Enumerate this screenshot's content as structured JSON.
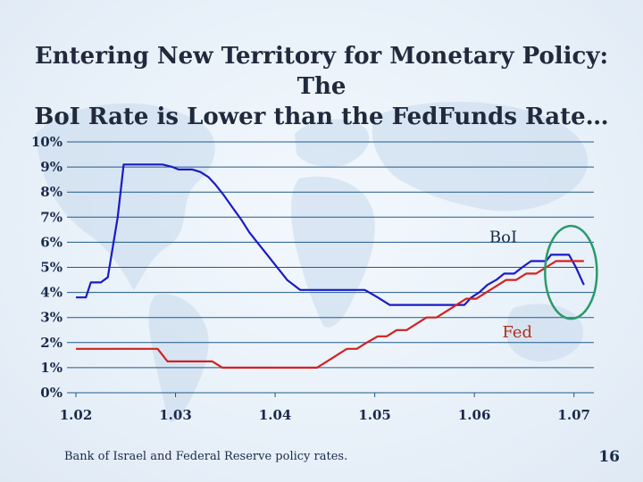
{
  "slide": {
    "title_line1": "Entering New Territory for Monetary Policy:  The",
    "title_line2": "BoI Rate is Lower than the FedFunds Rate…",
    "footnote": "Bank of Israel and Federal Reserve policy rates.",
    "page_number": "16"
  },
  "colors": {
    "bg_map": "#c9daee",
    "grid": "#1f5a8a",
    "boi_line": "#1a1ac8",
    "fed_line": "#d42020",
    "highlight_circle": "#2a9a6a",
    "text": "#1a2a4a"
  },
  "chart_data": {
    "type": "line",
    "title": "",
    "xlabel": "",
    "ylabel": "",
    "xlim": [
      1.02,
      1.072
    ],
    "ylim": [
      0,
      10
    ],
    "grid": true,
    "x_ticks": [
      1.02,
      1.03,
      1.04,
      1.05,
      1.06,
      1.07
    ],
    "x_tick_labels": [
      "1.02",
      "1.03",
      "1.04",
      "1.05",
      "1.06",
      "1.07"
    ],
    "y_ticks": [
      0,
      1,
      2,
      3,
      4,
      5,
      6,
      7,
      8,
      9,
      10
    ],
    "y_tick_labels": [
      "0%",
      "1%",
      "2%",
      "3%",
      "4%",
      "5%",
      "6%",
      "7%",
      "8%",
      "9%",
      "10%"
    ],
    "series": [
      {
        "name": "BoI",
        "label_at": [
          1.0615,
          6.0
        ],
        "x": [
          1.02,
          1.021,
          1.0215,
          1.0225,
          1.0232,
          1.0242,
          1.0248,
          1.0257,
          1.0267,
          1.0277,
          1.0287,
          1.0297,
          1.0303,
          1.0313,
          1.0317,
          1.0325,
          1.0333,
          1.034,
          1.0348,
          1.0357,
          1.0366,
          1.0374,
          1.0382,
          1.0392,
          1.04,
          1.0406,
          1.0412,
          1.0425,
          1.044,
          1.0455,
          1.047,
          1.0475,
          1.049,
          1.0503,
          1.0515,
          1.053,
          1.0545,
          1.056,
          1.0565,
          1.0572,
          1.0582,
          1.059,
          1.0597,
          1.0605,
          1.0613,
          1.0622,
          1.063,
          1.064,
          1.0648,
          1.0657,
          1.0664,
          1.0672,
          1.0677,
          1.0686,
          1.0695,
          1.0702,
          1.071
        ],
        "values": [
          3.8,
          3.8,
          4.4,
          4.4,
          4.6,
          7.0,
          9.1,
          9.1,
          9.1,
          9.1,
          9.1,
          9.0,
          8.9,
          8.9,
          8.9,
          8.8,
          8.6,
          8.3,
          7.9,
          7.4,
          6.9,
          6.4,
          6.0,
          5.5,
          5.1,
          4.8,
          4.5,
          4.1,
          4.1,
          4.1,
          4.1,
          4.1,
          4.1,
          3.8,
          3.5,
          3.5,
          3.5,
          3.5,
          3.5,
          3.5,
          3.5,
          3.5,
          3.8,
          4.0,
          4.3,
          4.5,
          4.75,
          4.75,
          5.0,
          5.25,
          5.25,
          5.25,
          5.5,
          5.5,
          5.5,
          5.0,
          4.3
        ]
      },
      {
        "name": "Fed",
        "label_at": [
          1.0628,
          2.2
        ],
        "x": [
          1.02,
          1.0247,
          1.0275,
          1.0282,
          1.0292,
          1.0337,
          1.0347,
          1.04,
          1.0428,
          1.0442,
          1.0452,
          1.0462,
          1.0472,
          1.0482,
          1.0492,
          1.0503,
          1.0512,
          1.0522,
          1.0532,
          1.0542,
          1.0552,
          1.0562,
          1.0572,
          1.0582,
          1.0592,
          1.0602,
          1.0612,
          1.0622,
          1.0632,
          1.0642,
          1.0652,
          1.0662,
          1.0672,
          1.0682,
          1.069,
          1.07,
          1.071
        ],
        "values": [
          1.75,
          1.75,
          1.75,
          1.75,
          1.25,
          1.25,
          1.0,
          1.0,
          1.0,
          1.0,
          1.25,
          1.5,
          1.75,
          1.75,
          2.0,
          2.25,
          2.25,
          2.5,
          2.5,
          2.75,
          3.0,
          3.0,
          3.25,
          3.5,
          3.75,
          3.75,
          4.0,
          4.25,
          4.5,
          4.5,
          4.75,
          4.75,
          5.0,
          5.25,
          5.25,
          5.25,
          5.25
        ]
      }
    ],
    "annotations": [
      {
        "type": "ellipse",
        "center": [
          1.0697,
          4.8
        ],
        "rx_data": 0.0026,
        "ry_data": 1.85
      }
    ]
  }
}
